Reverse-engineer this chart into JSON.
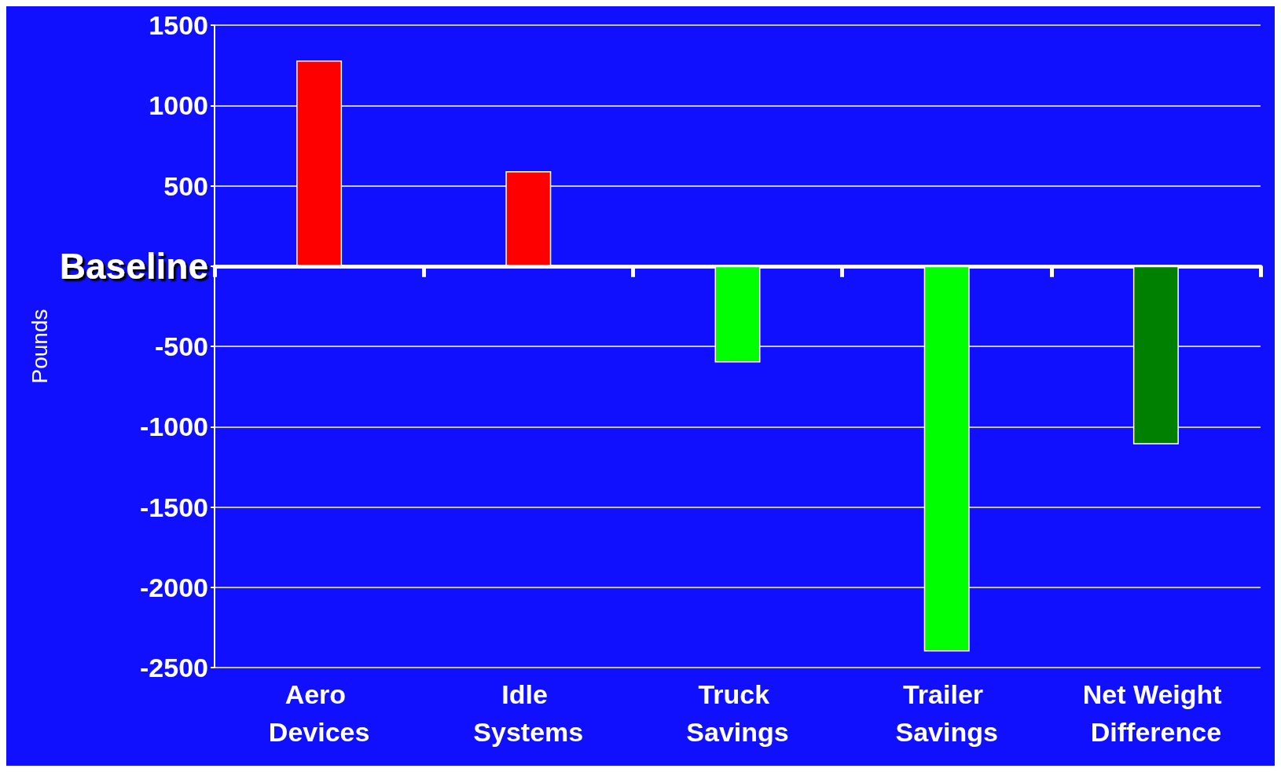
{
  "chart_data": {
    "type": "bar",
    "ylabel": "Pounds",
    "categories": [
      "Aero Devices",
      "Idle Systems",
      "Truck Savings",
      "Trailer Savings",
      "Net Weight Difference"
    ],
    "values": [
      1280,
      590,
      -600,
      -2400,
      -1110
    ],
    "colors": [
      "#ff0000",
      "#ff0000",
      "#00ff00",
      "#00ff00",
      "#008000"
    ],
    "ylim": [
      -2500,
      1500
    ],
    "yticks": [
      -2500,
      -2000,
      -1500,
      -1000,
      -500,
      {
        "value": 0,
        "label": "Baseline"
      },
      500,
      1000,
      1500
    ],
    "grid": "y"
  }
}
